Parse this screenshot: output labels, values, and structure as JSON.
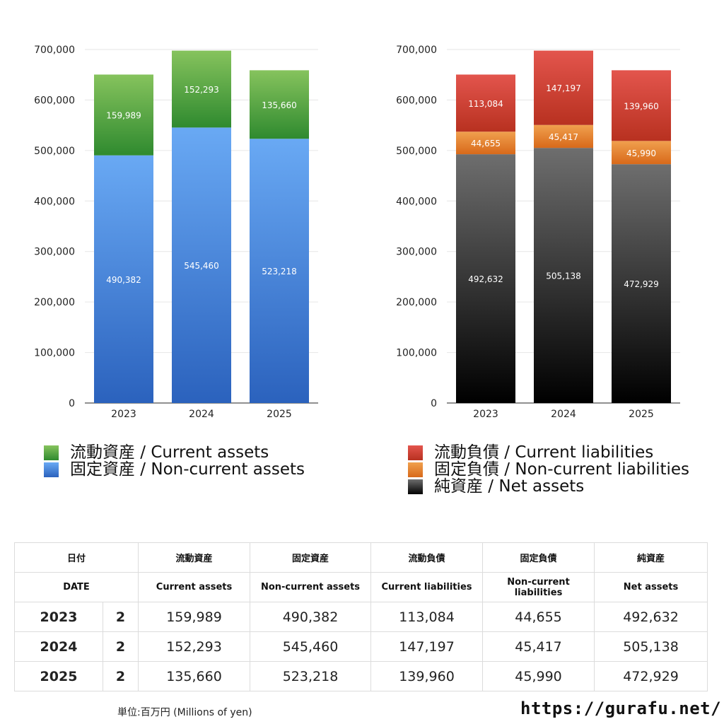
{
  "colors": {
    "current_assets": [
      "#86c35d",
      "#2f8a2f"
    ],
    "non_current_assets": [
      "#69a9f4",
      "#2b62bd"
    ],
    "current_liabilities": [
      "#e3554d",
      "#b83120"
    ],
    "non_current_liabilities": [
      "#f0a04e",
      "#d8691a"
    ],
    "net_assets": [
      "#6e6e6e",
      "#000000"
    ]
  },
  "chart_data": [
    {
      "type": "bar",
      "stacked": true,
      "title": "",
      "xlabel": "",
      "ylabel": "",
      "categories": [
        "2023",
        "2024",
        "2025"
      ],
      "ylim": [
        0,
        700000
      ],
      "yticks": [
        "0",
        "100,000",
        "200,000",
        "300,000",
        "400,000",
        "500,000",
        "600,000",
        "700,000"
      ],
      "grid": true,
      "legend_position": "bottom",
      "series": [
        {
          "name": "固定資産 / Non-current assets",
          "key": "non_current_assets",
          "values": [
            490382,
            545460,
            523218
          ],
          "labels": [
            "490,382",
            "545,460",
            "523,218"
          ]
        },
        {
          "name": "流動資産 / Current assets",
          "key": "current_assets",
          "values": [
            159989,
            152293,
            135660
          ],
          "labels": [
            "159,989",
            "152,293",
            "135,660"
          ]
        }
      ]
    },
    {
      "type": "bar",
      "stacked": true,
      "title": "",
      "xlabel": "",
      "ylabel": "",
      "categories": [
        "2023",
        "2024",
        "2025"
      ],
      "ylim": [
        0,
        700000
      ],
      "yticks": [
        "0",
        "100,000",
        "200,000",
        "300,000",
        "400,000",
        "500,000",
        "600,000",
        "700,000"
      ],
      "grid": true,
      "legend_position": "bottom",
      "series": [
        {
          "name": "純資産 / Net assets",
          "key": "net_assets",
          "values": [
            492632,
            505138,
            472929
          ],
          "labels": [
            "492,632",
            "505,138",
            "472,929"
          ]
        },
        {
          "name": "固定負債 / Non-current liabilities",
          "key": "non_current_liabilities",
          "values": [
            44655,
            45417,
            45990
          ],
          "labels": [
            "44,655",
            "45,417",
            "45,990"
          ]
        },
        {
          "name": "流動負債 / Current liabilities",
          "key": "current_liabilities",
          "values": [
            113084,
            147197,
            139960
          ],
          "labels": [
            "113,084",
            "147,197",
            "139,960"
          ]
        }
      ]
    }
  ],
  "legend_left": [
    {
      "label": "流動資産 / Current assets",
      "key": "current_assets"
    },
    {
      "label": "固定資産 / Non-current assets",
      "key": "non_current_assets"
    }
  ],
  "legend_right": [
    {
      "label": "流動負債 / Current liabilities",
      "key": "current_liabilities"
    },
    {
      "label": "固定負債 / Non-current liabilities",
      "key": "non_current_liabilities"
    },
    {
      "label": "純資産 / Net assets",
      "key": "net_assets"
    }
  ],
  "table": {
    "header_jp": [
      "日付",
      "",
      "流動資産",
      "固定資産",
      "流動負債",
      "固定負債",
      "純資産"
    ],
    "header_en": [
      "DATE",
      "",
      "Current assets",
      "Non-current assets",
      "Current liabilities",
      "Non-current liabilities",
      "Net assets"
    ],
    "rows": [
      [
        "2023",
        "2",
        "159,989",
        "490,382",
        "113,084",
        "44,655",
        "492,632"
      ],
      [
        "2024",
        "2",
        "152,293",
        "545,460",
        "147,197",
        "45,417",
        "505,138"
      ],
      [
        "2025",
        "2",
        "135,660",
        "523,218",
        "139,960",
        "45,990",
        "472,929"
      ]
    ]
  },
  "footnote": "単位:百万円 (Millions of yen)",
  "site": "https://gurafu.net/"
}
